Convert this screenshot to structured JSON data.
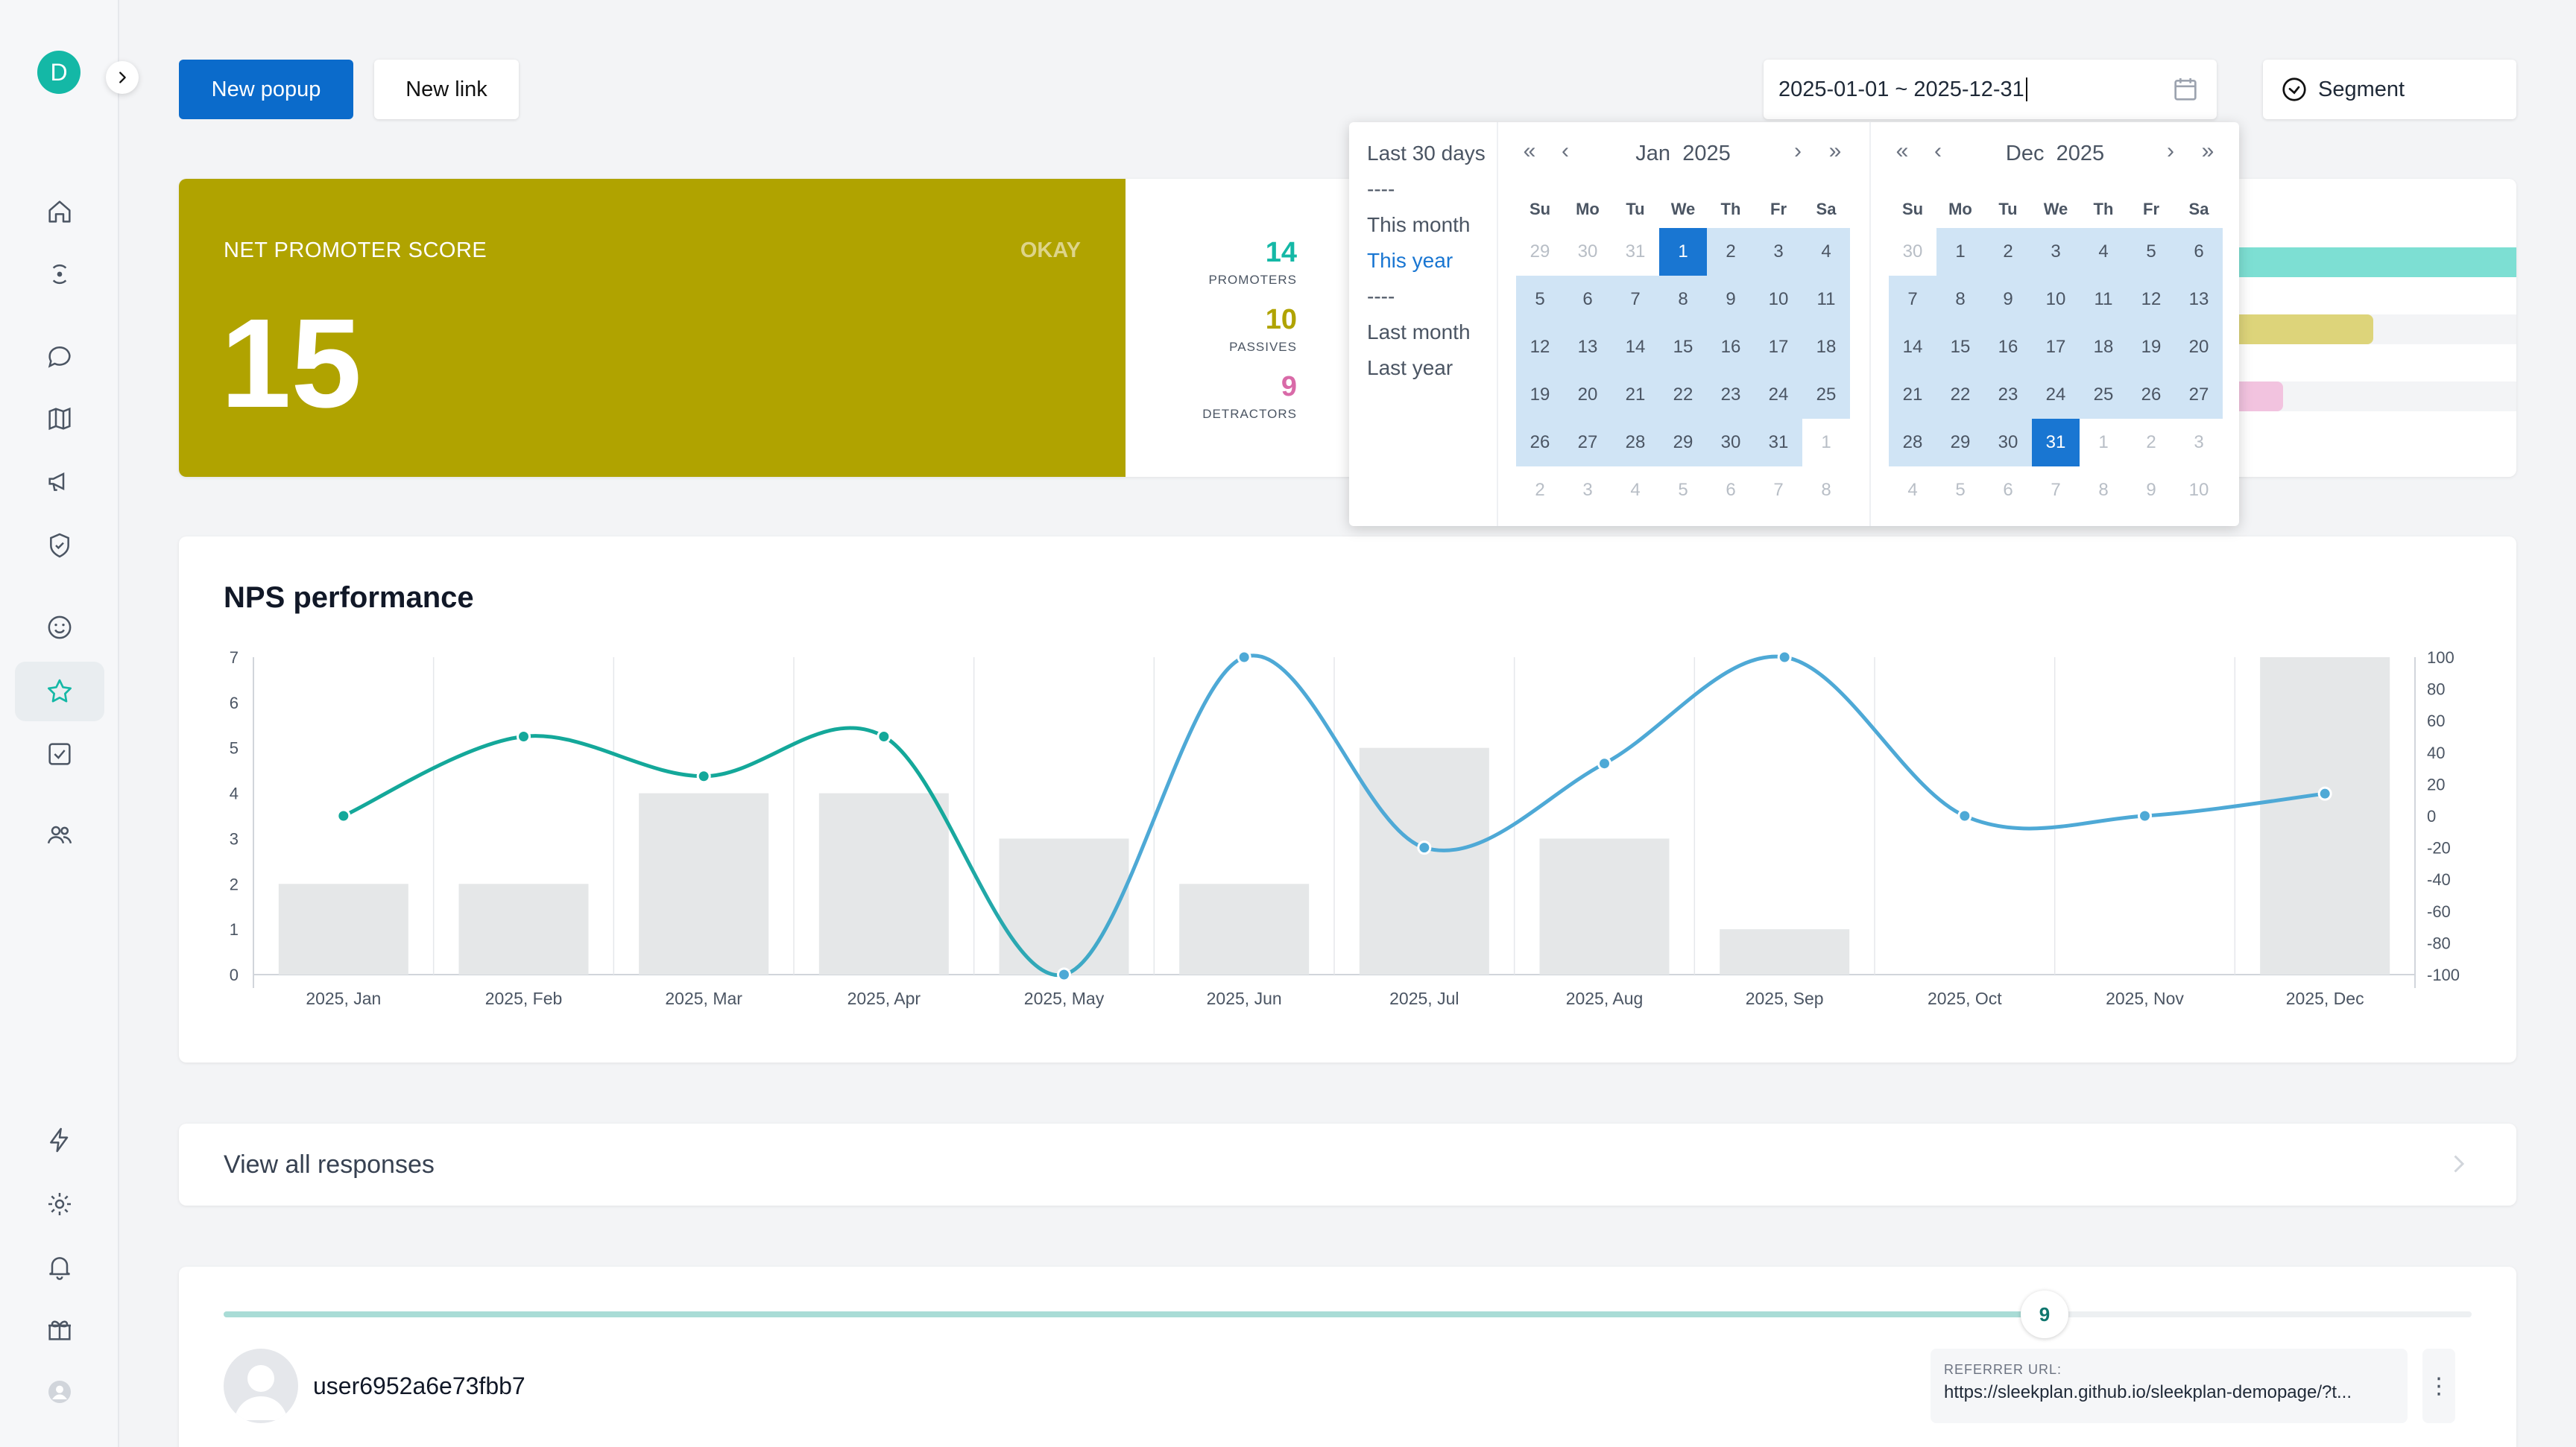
{
  "sidebar": {
    "avatar_initial": "D",
    "items": [
      {
        "icon": "home-icon"
      },
      {
        "icon": "radar-icon"
      },
      {
        "icon": "chat-icon"
      },
      {
        "icon": "map-icon"
      },
      {
        "icon": "megaphone-icon"
      },
      {
        "icon": "shield-icon"
      },
      {
        "icon": "smiley-icon"
      },
      {
        "icon": "star-icon",
        "active": true
      },
      {
        "icon": "checkbox-icon"
      },
      {
        "icon": "users-icon"
      },
      {
        "icon": "lightning-icon"
      },
      {
        "icon": "gear-icon"
      },
      {
        "icon": "bell-icon"
      },
      {
        "icon": "gift-icon"
      },
      {
        "icon": "user-circle-icon"
      }
    ]
  },
  "toolbar": {
    "new_popup_label": "New popup",
    "new_link_label": "New link",
    "date_range_value": "2025-01-01 ~ 2025-12-31",
    "segment_label": "Segment"
  },
  "nps": {
    "title": "NET PROMOTER SCORE",
    "status": "OKAY",
    "score": "15",
    "breakdown": [
      {
        "count": "14",
        "label": "PROMOTERS",
        "color": "#14b8a6",
        "bar_color": "#7ddfd3"
      },
      {
        "count": "10",
        "label": "PASSIVES",
        "color": "#b0a300",
        "bar_color": "#ddd47a"
      },
      {
        "count": "9",
        "label": "DETRACTORS",
        "color": "#d96aa8",
        "bar_color": "#f2c3df"
      }
    ]
  },
  "date_picker": {
    "presets": [
      {
        "label": "Last 30 days",
        "active": false
      },
      {
        "label": "----",
        "active": false
      },
      {
        "label": "This month",
        "active": false
      },
      {
        "label": "This year",
        "active": true
      },
      {
        "label": "----",
        "active": false
      },
      {
        "label": "Last month",
        "active": false
      },
      {
        "label": "Last year",
        "active": false
      }
    ],
    "weekdays": [
      "Su",
      "Mo",
      "Tu",
      "We",
      "Th",
      "Fr",
      "Sa"
    ],
    "left": {
      "month": "Jan",
      "year": "2025",
      "rows": [
        [
          "29",
          "30",
          "31",
          "1",
          "2",
          "3",
          "4"
        ],
        [
          "5",
          "6",
          "7",
          "8",
          "9",
          "10",
          "11"
        ],
        [
          "12",
          "13",
          "14",
          "15",
          "16",
          "17",
          "18"
        ],
        [
          "19",
          "20",
          "21",
          "22",
          "23",
          "24",
          "25"
        ],
        [
          "26",
          "27",
          "28",
          "29",
          "30",
          "31",
          "1"
        ],
        [
          "2",
          "3",
          "4",
          "5",
          "6",
          "7",
          "8"
        ]
      ],
      "first_in_month_index": 3,
      "last_in_month_index": 33,
      "selected": "1"
    },
    "right": {
      "month": "Dec",
      "year": "2025",
      "rows": [
        [
          "30",
          "1",
          "2",
          "3",
          "4",
          "5",
          "6"
        ],
        [
          "7",
          "8",
          "9",
          "10",
          "11",
          "12",
          "13"
        ],
        [
          "14",
          "15",
          "16",
          "17",
          "18",
          "19",
          "20"
        ],
        [
          "21",
          "22",
          "23",
          "24",
          "25",
          "26",
          "27"
        ],
        [
          "28",
          "29",
          "30",
          "31",
          "1",
          "2",
          "3"
        ],
        [
          "4",
          "5",
          "6",
          "7",
          "8",
          "9",
          "10"
        ]
      ],
      "first_in_month_index": 1,
      "last_in_month_index": 31,
      "selected": "31"
    }
  },
  "chart": {
    "title": "NPS performance",
    "bar_color": "#e5e7e8",
    "line_color_positive": "#14a89a",
    "line_color": "#4ea9d6"
  },
  "chart_data": {
    "type": "bar",
    "categories": [
      "2025, Jan",
      "2025, Feb",
      "2025, Mar",
      "2025, Apr",
      "2025, May",
      "2025, Jun",
      "2025, Jul",
      "2025, Aug",
      "2025, Sep",
      "2025, Oct",
      "2025, Nov",
      "2025, Dec"
    ],
    "series": [
      {
        "type": "bar",
        "axis": "left",
        "values": [
          2,
          2,
          4,
          4,
          3,
          2,
          5,
          3,
          1,
          0,
          0,
          7
        ]
      },
      {
        "type": "line",
        "axis": "right",
        "values": [
          0,
          50,
          25,
          50,
          -100,
          100,
          -20,
          33,
          100,
          0,
          0,
          14
        ]
      }
    ],
    "ylim_left": [
      0,
      7
    ],
    "yticks_left": [
      "0",
      "1",
      "2",
      "3",
      "4",
      "5",
      "6",
      "7"
    ],
    "ylim_right": [
      -100,
      100
    ],
    "yticks_right": [
      "-100",
      "-80",
      "-60",
      "-40",
      "-20",
      "0",
      "20",
      "40",
      "60",
      "80",
      "100"
    ],
    "grid": true
  },
  "view_all": {
    "label": "View all responses"
  },
  "response": {
    "score": "9",
    "progress": 0.9,
    "username": "user6952a6e73fbb7",
    "referrer_label": "REFERRER URL:",
    "referrer_url": "https://sleekplan.github.io/sleekplan-demopage/?t...",
    "menu_glyph": "⋮"
  }
}
